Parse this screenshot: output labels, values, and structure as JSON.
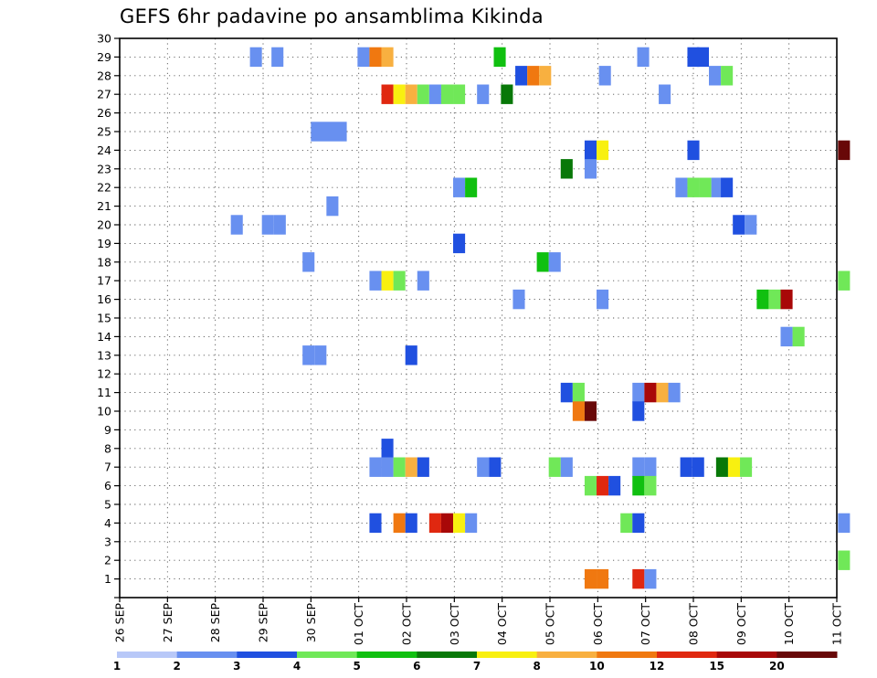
{
  "chart_data": {
    "type": "heatmap",
    "title": "GEFS 6hr padavine po ansamblima Kikinda",
    "x_tick_labels": [
      "26 SEP",
      "27 SEP",
      "28 SEP",
      "29 SEP",
      "30 SEP",
      "01 OCT",
      "02 OCT",
      "03 OCT",
      "04 OCT",
      "05 OCT",
      "06 OCT",
      "07 OCT",
      "08 OCT",
      "09 OCT",
      "10 OCT",
      "11 OCT"
    ],
    "x_range_days": [
      0,
      15
    ],
    "y_tick_labels": [
      "1",
      "2",
      "3",
      "4",
      "5",
      "6",
      "7",
      "8",
      "9",
      "10",
      "11",
      "12",
      "13",
      "14",
      "15",
      "16",
      "17",
      "18",
      "19",
      "20",
      "21",
      "22",
      "23",
      "24",
      "25",
      "26",
      "27",
      "28",
      "29",
      "30"
    ],
    "y_range": [
      0,
      30
    ],
    "grid": true,
    "legend_position": "bottom",
    "color_scale": {
      "colors": [
        "#b8c8f8",
        "#6890f0",
        "#2050e0",
        "#70e858",
        "#10c010",
        "#087808",
        "#f8f010",
        "#f8b040",
        "#f07810",
        "#e02810",
        "#a80808",
        "#680808"
      ],
      "labels": [
        "1",
        "2",
        "3",
        "4",
        "5",
        "6",
        "7",
        "8",
        "10",
        "12",
        "15",
        "20"
      ]
    },
    "cells": [
      [
        29,
        [
          [
            2.85,
            1
          ],
          [
            3.3,
            1
          ],
          [
            5.1,
            1
          ],
          [
            5.35,
            8
          ],
          [
            5.6,
            7
          ],
          [
            7.95,
            4
          ],
          [
            10.95,
            1
          ],
          [
            12,
            2
          ],
          [
            12.2,
            2
          ]
        ]
      ],
      [
        28,
        [
          [
            8.4,
            2
          ],
          [
            8.65,
            8
          ],
          [
            8.9,
            7
          ],
          [
            10.15,
            1
          ],
          [
            12.45,
            1
          ],
          [
            12.7,
            3
          ]
        ]
      ],
      [
        27,
        [
          [
            5.6,
            9
          ],
          [
            5.85,
            6
          ],
          [
            6.1,
            7
          ],
          [
            6.35,
            3
          ],
          [
            6.6,
            1
          ],
          [
            6.85,
            3
          ],
          [
            7.1,
            3
          ],
          [
            7.6,
            1
          ],
          [
            8.1,
            5
          ],
          [
            11.4,
            1
          ]
        ]
      ],
      [
        24,
        [
          [
            9.85,
            2
          ],
          [
            10.1,
            6
          ],
          [
            12,
            2
          ],
          [
            15.15,
            11
          ]
        ]
      ],
      [
        23,
        [
          [
            9.35,
            5
          ],
          [
            9.85,
            1
          ]
        ]
      ],
      [
        22,
        [
          [
            7.1,
            1
          ],
          [
            7.35,
            4
          ],
          [
            11.75,
            1
          ],
          [
            12,
            3
          ],
          [
            12.25,
            3
          ],
          [
            12.5,
            1
          ],
          [
            12.7,
            2
          ]
        ]
      ],
      [
        21,
        [
          [
            4.45,
            1
          ]
        ]
      ],
      [
        20,
        [
          [
            2.45,
            1
          ],
          [
            3.1,
            1
          ],
          [
            3.35,
            1
          ],
          [
            12.95,
            2
          ],
          [
            13.2,
            1
          ]
        ]
      ],
      [
        19,
        [
          [
            7.1,
            2
          ]
        ]
      ],
      [
        18,
        [
          [
            3.95,
            1
          ],
          [
            8.85,
            4
          ],
          [
            9.1,
            1
          ]
        ]
      ],
      [
        17,
        [
          [
            5.35,
            1
          ],
          [
            5.6,
            6
          ],
          [
            5.85,
            3
          ],
          [
            6.35,
            1
          ],
          [
            15.15,
            3
          ]
        ]
      ],
      [
        16,
        [
          [
            8.35,
            1
          ],
          [
            10.1,
            1
          ],
          [
            13.45,
            4
          ],
          [
            13.7,
            3
          ],
          [
            13.95,
            10
          ]
        ]
      ],
      [
        14,
        [
          [
            13.95,
            1
          ],
          [
            14.2,
            3
          ]
        ]
      ],
      [
        13,
        [
          [
            3.95,
            1
          ],
          [
            4.2,
            1
          ],
          [
            6.1,
            2
          ]
        ]
      ],
      [
        11,
        [
          [
            9.35,
            2
          ],
          [
            9.6,
            3
          ],
          [
            10.85,
            1
          ],
          [
            11.1,
            10
          ],
          [
            11.35,
            7
          ],
          [
            11.6,
            1
          ]
        ]
      ],
      [
        10,
        [
          [
            9.6,
            8
          ],
          [
            9.85,
            11
          ],
          [
            10.85,
            2
          ]
        ]
      ],
      [
        8,
        [
          [
            5.6,
            2
          ]
        ]
      ],
      [
        7,
        [
          [
            5.35,
            1
          ],
          [
            5.6,
            1
          ],
          [
            5.85,
            3
          ],
          [
            6.1,
            7
          ],
          [
            6.35,
            2
          ],
          [
            7.6,
            1
          ],
          [
            7.85,
            2
          ],
          [
            9.1,
            3
          ],
          [
            9.35,
            1
          ],
          [
            10.85,
            1
          ],
          [
            11.1,
            1
          ],
          [
            11.85,
            2
          ],
          [
            12.1,
            2
          ],
          [
            12.6,
            5
          ],
          [
            12.85,
            6
          ],
          [
            13.1,
            3
          ]
        ]
      ],
      [
        6,
        [
          [
            9.85,
            3
          ],
          [
            10.1,
            9
          ],
          [
            10.35,
            2
          ],
          [
            10.85,
            4
          ],
          [
            11.1,
            3
          ]
        ]
      ],
      [
        4,
        [
          [
            5.35,
            2
          ],
          [
            5.85,
            8
          ],
          [
            6.1,
            2
          ],
          [
            6.6,
            9
          ],
          [
            6.85,
            10
          ],
          [
            7.1,
            6
          ],
          [
            7.35,
            1
          ],
          [
            10.6,
            3
          ],
          [
            10.85,
            2
          ],
          [
            15.15,
            1
          ]
        ]
      ],
      [
        2,
        [
          [
            15.15,
            3
          ]
        ]
      ],
      [
        1,
        [
          [
            9.85,
            8
          ],
          [
            10.1,
            8
          ],
          [
            10.85,
            9
          ],
          [
            11.1,
            1
          ]
        ]
      ]
    ],
    "wide_cells": [
      [
        25,
        4.0,
        4.75,
        1
      ]
    ]
  }
}
